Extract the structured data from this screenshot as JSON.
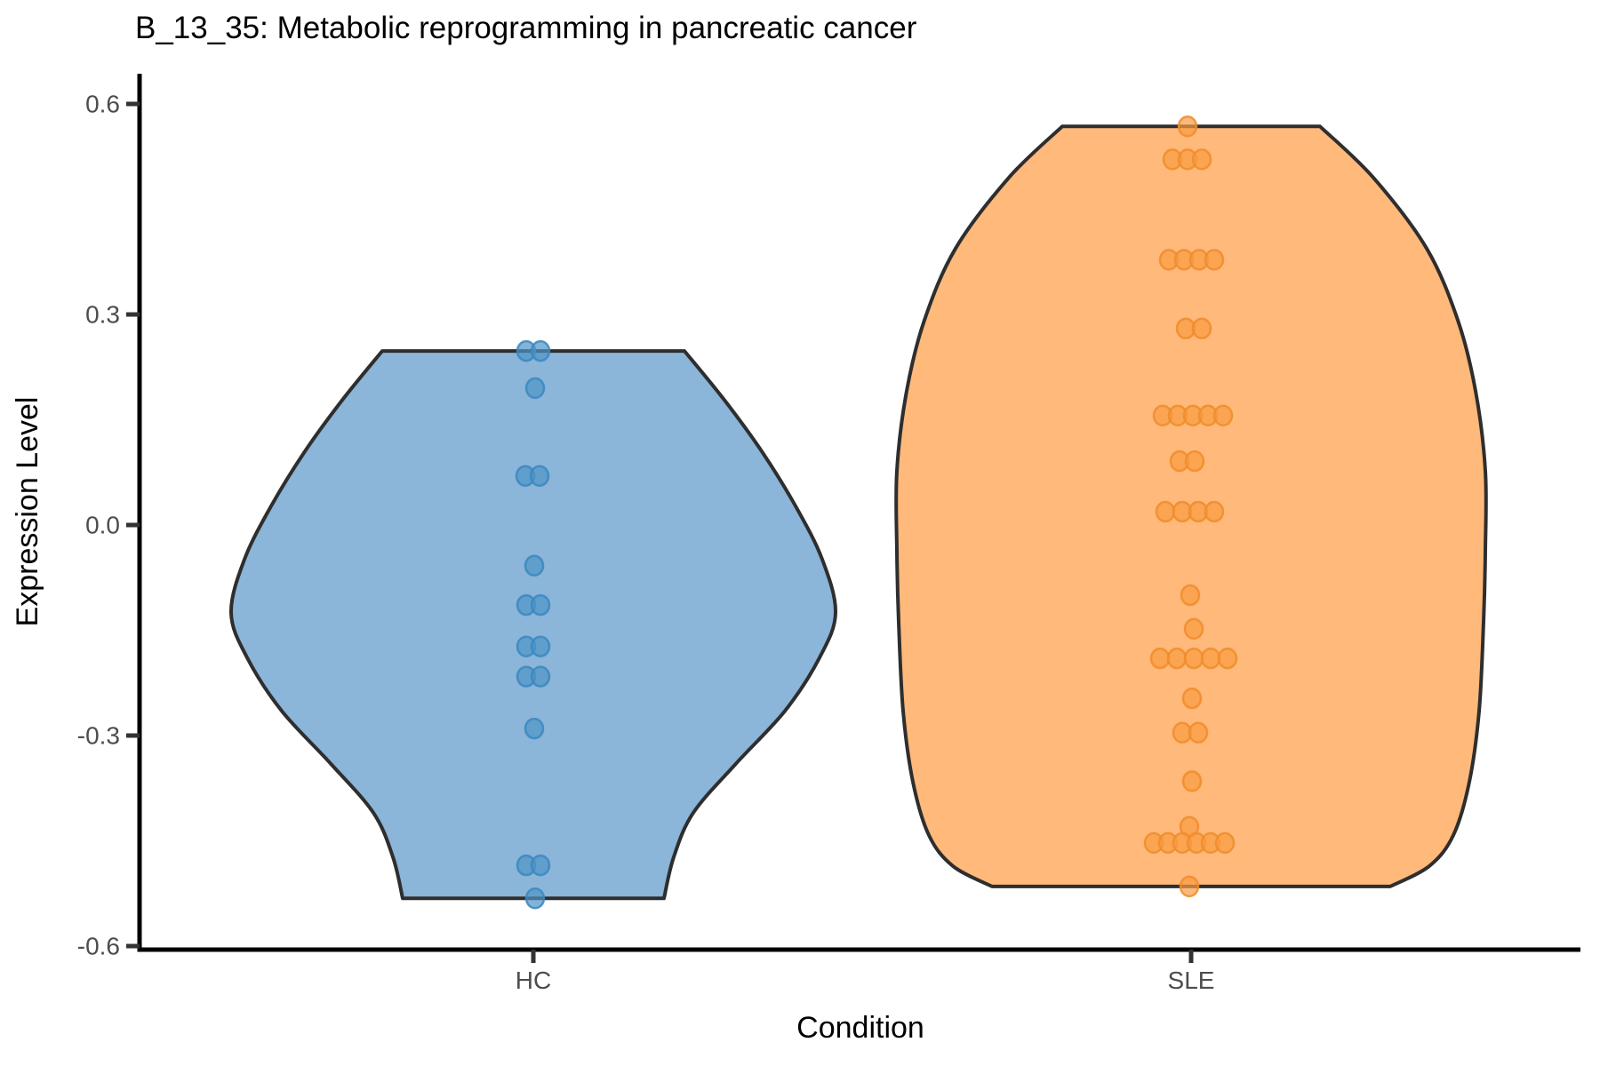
{
  "chart_data": {
    "type": "violin",
    "title": "B_13_35: Metabolic reprogramming in pancreatic cancer",
    "xlabel": "Condition",
    "ylabel": "Expression Level",
    "categories": [
      "HC",
      "SLE"
    ],
    "ylim": [
      -0.6,
      0.6
    ],
    "grid": "off",
    "legend": "none",
    "y_ticks": [
      {
        "value": 0.6,
        "label": "0.6"
      },
      {
        "value": 0.3,
        "label": "0.3"
      },
      {
        "value": 0.0,
        "label": "0.0"
      },
      {
        "value": -0.3,
        "label": "-0.3"
      },
      {
        "value": -0.6,
        "label": "-0.6"
      }
    ],
    "groups": [
      {
        "name": "HC",
        "n_points": 16,
        "fill": "#8BB5D9",
        "outline": "#2E2E2E",
        "point_fill": "#4E94C6",
        "point_stroke": "#3A87BF",
        "violin_range": [
          -0.532,
          0.248
        ],
        "profile": [
          [
            0.248,
            170
          ],
          [
            0.178,
            215
          ],
          [
            0.103,
            258
          ],
          [
            0.027,
            295
          ],
          [
            -0.049,
            325
          ],
          [
            -0.125,
            340
          ],
          [
            -0.189,
            322
          ],
          [
            -0.265,
            283
          ],
          [
            -0.34,
            228
          ],
          [
            -0.41,
            180
          ],
          [
            -0.473,
            158
          ],
          [
            -0.532,
            147
          ]
        ],
        "points": [
          {
            "value": 0.248,
            "jitter": -8
          },
          {
            "value": 0.248,
            "jitter": 8
          },
          {
            "value": 0.195,
            "jitter": 2
          },
          {
            "value": 0.07,
            "jitter": -9
          },
          {
            "value": 0.07,
            "jitter": 7
          },
          {
            "value": -0.058,
            "jitter": 1
          },
          {
            "value": -0.114,
            "jitter": -8
          },
          {
            "value": -0.114,
            "jitter": 8
          },
          {
            "value": -0.173,
            "jitter": -8
          },
          {
            "value": -0.173,
            "jitter": 8
          },
          {
            "value": -0.216,
            "jitter": -8
          },
          {
            "value": -0.216,
            "jitter": 8
          },
          {
            "value": -0.29,
            "jitter": 1
          },
          {
            "value": -0.485,
            "jitter": -8
          },
          {
            "value": -0.485,
            "jitter": 8
          },
          {
            "value": -0.532,
            "jitter": 2
          }
        ]
      },
      {
        "name": "SLE",
        "n_points": 40,
        "fill": "#FEB97B",
        "outline": "#2E2E2E",
        "point_fill": "#F99B42",
        "point_stroke": "#F08C2B",
        "violin_range": [
          -0.515,
          0.568
        ],
        "profile": [
          [
            0.568,
            145
          ],
          [
            0.495,
            205
          ],
          [
            0.394,
            265
          ],
          [
            0.292,
            300
          ],
          [
            0.191,
            320
          ],
          [
            0.077,
            331
          ],
          [
            -0.037,
            331
          ],
          [
            -0.138,
            329
          ],
          [
            -0.265,
            324
          ],
          [
            -0.366,
            313
          ],
          [
            -0.442,
            295
          ],
          [
            -0.486,
            268
          ],
          [
            -0.515,
            224
          ]
        ],
        "points": [
          {
            "value": 0.568,
            "jitter": -4
          },
          {
            "value": 0.521,
            "jitter": -21
          },
          {
            "value": 0.521,
            "jitter": -4
          },
          {
            "value": 0.521,
            "jitter": 12
          },
          {
            "value": 0.378,
            "jitter": -25
          },
          {
            "value": 0.378,
            "jitter": -8
          },
          {
            "value": 0.378,
            "jitter": 9
          },
          {
            "value": 0.378,
            "jitter": 26
          },
          {
            "value": 0.28,
            "jitter": -6
          },
          {
            "value": 0.28,
            "jitter": 12
          },
          {
            "value": 0.156,
            "jitter": -32
          },
          {
            "value": 0.156,
            "jitter": -15
          },
          {
            "value": 0.156,
            "jitter": 2
          },
          {
            "value": 0.156,
            "jitter": 19
          },
          {
            "value": 0.156,
            "jitter": 36
          },
          {
            "value": 0.091,
            "jitter": -13
          },
          {
            "value": 0.091,
            "jitter": 4
          },
          {
            "value": 0.019,
            "jitter": -29
          },
          {
            "value": 0.019,
            "jitter": -10
          },
          {
            "value": 0.019,
            "jitter": 8
          },
          {
            "value": 0.019,
            "jitter": 26
          },
          {
            "value": -0.1,
            "jitter": -1
          },
          {
            "value": -0.148,
            "jitter": 3
          },
          {
            "value": -0.19,
            "jitter": -35
          },
          {
            "value": -0.19,
            "jitter": -16
          },
          {
            "value": -0.19,
            "jitter": 3
          },
          {
            "value": -0.19,
            "jitter": 22
          },
          {
            "value": -0.19,
            "jitter": 41
          },
          {
            "value": -0.247,
            "jitter": 1
          },
          {
            "value": -0.296,
            "jitter": -10
          },
          {
            "value": -0.296,
            "jitter": 8
          },
          {
            "value": -0.365,
            "jitter": 1
          },
          {
            "value": -0.43,
            "jitter": -2
          },
          {
            "value": -0.453,
            "jitter": -42
          },
          {
            "value": -0.453,
            "jitter": -26
          },
          {
            "value": -0.453,
            "jitter": -10
          },
          {
            "value": -0.453,
            "jitter": 6
          },
          {
            "value": -0.453,
            "jitter": 22
          },
          {
            "value": -0.453,
            "jitter": 38
          },
          {
            "value": -0.515,
            "jitter": -2
          }
        ]
      }
    ],
    "colors": {
      "axis_line": "#000000",
      "tick_mark": "#333333",
      "tick_label": "#4d4d4d",
      "title_text": "#000000"
    }
  }
}
